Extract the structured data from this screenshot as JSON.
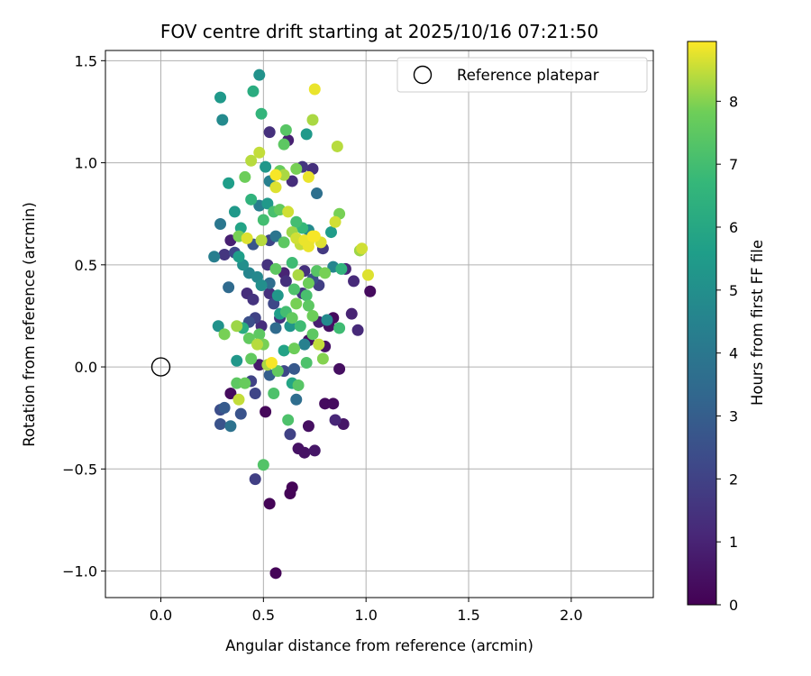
{
  "chart_data": {
    "type": "scatter",
    "title": "FOV centre drift starting at 2025/10/16 07:21:50",
    "xlabel": "Angular distance from reference (arcmin)",
    "ylabel": "Rotation from reference (arcmin)",
    "xlim": [
      -0.27,
      2.4
    ],
    "ylim": [
      -1.13,
      1.55
    ],
    "xticks": [
      0.0,
      0.5,
      1.0,
      1.5,
      2.0
    ],
    "xtick_labels": [
      "0.0",
      "0.5",
      "1.0",
      "1.5",
      "2.0"
    ],
    "yticks": [
      -1.0,
      -0.5,
      0.0,
      0.5,
      1.0,
      1.5
    ],
    "ytick_labels": [
      "−1.0",
      "−0.5",
      "0.0",
      "0.5",
      "1.0",
      "1.5"
    ],
    "grid": true,
    "legend": {
      "position": "top-right",
      "entries": [
        "Reference platepar"
      ]
    },
    "reference_point": {
      "x": 0.0,
      "y": 0.0,
      "label": "Reference platepar"
    },
    "colorbar": {
      "label": "Hours from first FF file",
      "colormap": "viridis",
      "range": [
        0,
        8.95
      ],
      "ticks": [
        0,
        1,
        2,
        3,
        4,
        5,
        6,
        7,
        8
      ],
      "tick_labels": [
        "0",
        "1",
        "2",
        "3",
        "4",
        "5",
        "6",
        "7",
        "8"
      ]
    },
    "series": [
      {
        "name": "FOV centre drift",
        "points": [
          [
            0.56,
            -1.01,
            0.1
          ],
          [
            0.53,
            -0.67,
            0.1
          ],
          [
            0.63,
            -0.62,
            0.1
          ],
          [
            0.64,
            -0.59,
            0.1
          ],
          [
            0.46,
            -0.55,
            1.9
          ],
          [
            0.5,
            -0.48,
            7.3
          ],
          [
            0.67,
            -0.4,
            0.5
          ],
          [
            0.7,
            -0.42,
            0.5
          ],
          [
            0.75,
            -0.41,
            0.6
          ],
          [
            0.63,
            -0.33,
            2.0
          ],
          [
            0.62,
            -0.26,
            7.2
          ],
          [
            0.72,
            -0.29,
            0.4
          ],
          [
            0.85,
            -0.26,
            1.1
          ],
          [
            0.89,
            -0.28,
            0.6
          ],
          [
            0.51,
            -0.22,
            0.2
          ],
          [
            0.8,
            -0.18,
            0.3
          ],
          [
            0.84,
            -0.18,
            0.3
          ],
          [
            0.29,
            -0.28,
            2.6
          ],
          [
            0.34,
            -0.29,
            3.8
          ],
          [
            0.29,
            -0.21,
            2.4
          ],
          [
            0.31,
            -0.2,
            2.9
          ],
          [
            0.39,
            -0.23,
            2.6
          ],
          [
            0.34,
            -0.13,
            0.3
          ],
          [
            0.38,
            -0.16,
            8.5
          ],
          [
            0.37,
            -0.08,
            7.5
          ],
          [
            0.41,
            -0.08,
            7.7
          ],
          [
            0.44,
            -0.07,
            2.0
          ],
          [
            0.46,
            -0.13,
            2.1
          ],
          [
            0.55,
            -0.13,
            7.2
          ],
          [
            0.66,
            -0.16,
            3.6
          ],
          [
            0.67,
            -0.09,
            7.4
          ],
          [
            0.64,
            -0.08,
            5.9
          ],
          [
            0.53,
            -0.04,
            3.0
          ],
          [
            0.57,
            -0.02,
            7.6
          ],
          [
            0.6,
            -0.02,
            2.2
          ],
          [
            0.65,
            -0.01,
            2.8
          ],
          [
            0.87,
            -0.01,
            0.4
          ],
          [
            0.48,
            0.01,
            0.7
          ],
          [
            0.52,
            0.01,
            8.3
          ],
          [
            0.54,
            0.02,
            8.9
          ],
          [
            0.71,
            0.02,
            7.2
          ],
          [
            0.44,
            0.04,
            7.6
          ],
          [
            0.37,
            0.03,
            5.3
          ],
          [
            0.6,
            0.08,
            5.8
          ],
          [
            0.65,
            0.09,
            7.8
          ],
          [
            0.7,
            0.11,
            4.4
          ],
          [
            0.72,
            0.13,
            0.4
          ],
          [
            0.77,
            0.11,
            8.5
          ],
          [
            0.8,
            0.1,
            0.5
          ],
          [
            0.79,
            0.04,
            8.0
          ],
          [
            0.74,
            0.16,
            7.5
          ],
          [
            0.68,
            0.2,
            6.9
          ],
          [
            0.63,
            0.2,
            5.2
          ],
          [
            0.58,
            0.24,
            1.5
          ],
          [
            0.56,
            0.19,
            3.5
          ],
          [
            0.49,
            0.2,
            1.3
          ],
          [
            0.46,
            0.24,
            2.0
          ],
          [
            0.43,
            0.22,
            2.5
          ],
          [
            0.4,
            0.19,
            6.2
          ],
          [
            0.37,
            0.2,
            8.2
          ],
          [
            0.31,
            0.16,
            7.9
          ],
          [
            0.28,
            0.2,
            5.1
          ],
          [
            0.43,
            0.14,
            7.6
          ],
          [
            0.47,
            0.11,
            8.4
          ],
          [
            0.5,
            0.11,
            7.9
          ],
          [
            0.48,
            0.16,
            7.5
          ],
          [
            0.53,
            0.36,
            1.4
          ],
          [
            0.55,
            0.31,
            2.2
          ],
          [
            0.58,
            0.26,
            5.6
          ],
          [
            0.61,
            0.27,
            7.0
          ],
          [
            0.64,
            0.24,
            7.6
          ],
          [
            0.66,
            0.31,
            7.9
          ],
          [
            0.69,
            0.36,
            1.6
          ],
          [
            0.72,
            0.3,
            7.5
          ],
          [
            0.74,
            0.25,
            7.8
          ],
          [
            0.77,
            0.22,
            0.9
          ],
          [
            0.81,
            0.23,
            4.8
          ],
          [
            0.84,
            0.24,
            0.3
          ],
          [
            0.87,
            0.19,
            6.9
          ],
          [
            0.82,
            0.2,
            0.5
          ],
          [
            0.93,
            0.26,
            1.0
          ],
          [
            0.96,
            0.18,
            1.2
          ],
          [
            0.42,
            0.36,
            1.3
          ],
          [
            0.45,
            0.33,
            1.5
          ],
          [
            0.49,
            0.4,
            5.0
          ],
          [
            0.53,
            0.41,
            3.6
          ],
          [
            0.57,
            0.35,
            5.3
          ],
          [
            0.61,
            0.42,
            1.4
          ],
          [
            0.65,
            0.38,
            7.2
          ],
          [
            0.71,
            0.35,
            7.1
          ],
          [
            0.74,
            0.43,
            2.5
          ],
          [
            0.77,
            0.4,
            1.9
          ],
          [
            0.8,
            0.46,
            7.9
          ],
          [
            0.84,
            0.49,
            4.6
          ],
          [
            0.88,
            0.48,
            6.5
          ],
          [
            0.9,
            0.48,
            1.1
          ],
          [
            0.94,
            0.42,
            1.2
          ],
          [
            1.02,
            0.37,
            0.3
          ],
          [
            1.01,
            0.45,
            8.7
          ],
          [
            0.26,
            0.54,
            4.3
          ],
          [
            0.31,
            0.55,
            1.6
          ],
          [
            0.33,
            0.39,
            3.5
          ],
          [
            0.36,
            0.56,
            2.2
          ],
          [
            0.38,
            0.54,
            5.6
          ],
          [
            0.4,
            0.5,
            5.0
          ],
          [
            0.43,
            0.46,
            4.6
          ],
          [
            0.47,
            0.44,
            4.7
          ],
          [
            0.52,
            0.5,
            1.5
          ],
          [
            0.56,
            0.48,
            7.5
          ],
          [
            0.6,
            0.46,
            1.0
          ],
          [
            0.64,
            0.51,
            6.9
          ],
          [
            0.67,
            0.45,
            8.3
          ],
          [
            0.7,
            0.47,
            1.4
          ],
          [
            0.72,
            0.41,
            7.8
          ],
          [
            0.76,
            0.47,
            7.4
          ],
          [
            0.79,
            0.58,
            1.7
          ],
          [
            0.83,
            0.66,
            5.5
          ],
          [
            0.85,
            0.71,
            8.6
          ],
          [
            0.87,
            0.75,
            7.9
          ],
          [
            0.97,
            0.57,
            8.2
          ],
          [
            0.98,
            0.58,
            8.6
          ],
          [
            0.29,
            0.7,
            4.0
          ],
          [
            0.34,
            0.62,
            0.9
          ],
          [
            0.36,
            0.76,
            5.4
          ],
          [
            0.38,
            0.64,
            7.9
          ],
          [
            0.42,
            0.63,
            8.7
          ],
          [
            0.45,
            0.6,
            2.7
          ],
          [
            0.49,
            0.62,
            8.4
          ],
          [
            0.53,
            0.62,
            2.1
          ],
          [
            0.56,
            0.64,
            3.9
          ],
          [
            0.6,
            0.61,
            7.5
          ],
          [
            0.64,
            0.66,
            8.2
          ],
          [
            0.66,
            0.63,
            8.6
          ],
          [
            0.68,
            0.6,
            8.5
          ],
          [
            0.7,
            0.62,
            8.8
          ],
          [
            0.72,
            0.67,
            4.8
          ],
          [
            0.75,
            0.64,
            8.9
          ],
          [
            0.78,
            0.61,
            8.7
          ],
          [
            0.72,
            0.59,
            8.8
          ],
          [
            0.33,
            0.9,
            5.6
          ],
          [
            0.39,
            0.68,
            5.8
          ],
          [
            0.44,
            0.82,
            6.5
          ],
          [
            0.48,
            0.79,
            4.3
          ],
          [
            0.5,
            0.72,
            7.0
          ],
          [
            0.55,
            0.76,
            7.1
          ],
          [
            0.58,
            0.77,
            7.6
          ],
          [
            0.62,
            0.76,
            8.6
          ],
          [
            0.66,
            0.71,
            7.0
          ],
          [
            0.69,
            0.68,
            6.7
          ],
          [
            0.72,
            0.61,
            8.8
          ],
          [
            0.74,
            0.64,
            8.9
          ],
          [
            0.52,
            0.8,
            5.4
          ],
          [
            0.56,
            0.88,
            8.7
          ],
          [
            0.6,
            0.94,
            8.3
          ],
          [
            0.64,
            0.91,
            1.3
          ],
          [
            0.66,
            0.97,
            7.9
          ],
          [
            0.69,
            0.98,
            1.6
          ],
          [
            0.72,
            0.93,
            8.8
          ],
          [
            0.74,
            0.97,
            1.4
          ],
          [
            0.76,
            0.85,
            3.7
          ],
          [
            0.41,
            0.93,
            7.8
          ],
          [
            0.44,
            1.01,
            8.4
          ],
          [
            0.48,
            1.05,
            8.5
          ],
          [
            0.51,
            0.98,
            5.3
          ],
          [
            0.53,
            0.91,
            4.4
          ],
          [
            0.56,
            0.94,
            8.9
          ],
          [
            0.58,
            0.96,
            7.7
          ],
          [
            0.6,
            1.09,
            7.5
          ],
          [
            0.62,
            1.11,
            0.9
          ],
          [
            0.29,
            1.32,
            5.4
          ],
          [
            0.3,
            1.21,
            4.8
          ],
          [
            0.45,
            1.35,
            6.2
          ],
          [
            0.48,
            1.43,
            5.1
          ],
          [
            0.49,
            1.24,
            6.6
          ],
          [
            0.53,
            1.15,
            1.4
          ],
          [
            0.61,
            1.16,
            7.4
          ],
          [
            0.71,
            1.14,
            5.4
          ],
          [
            0.74,
            1.21,
            8.3
          ],
          [
            0.75,
            1.36,
            8.8
          ],
          [
            0.86,
            1.08,
            8.4
          ]
        ]
      }
    ]
  }
}
